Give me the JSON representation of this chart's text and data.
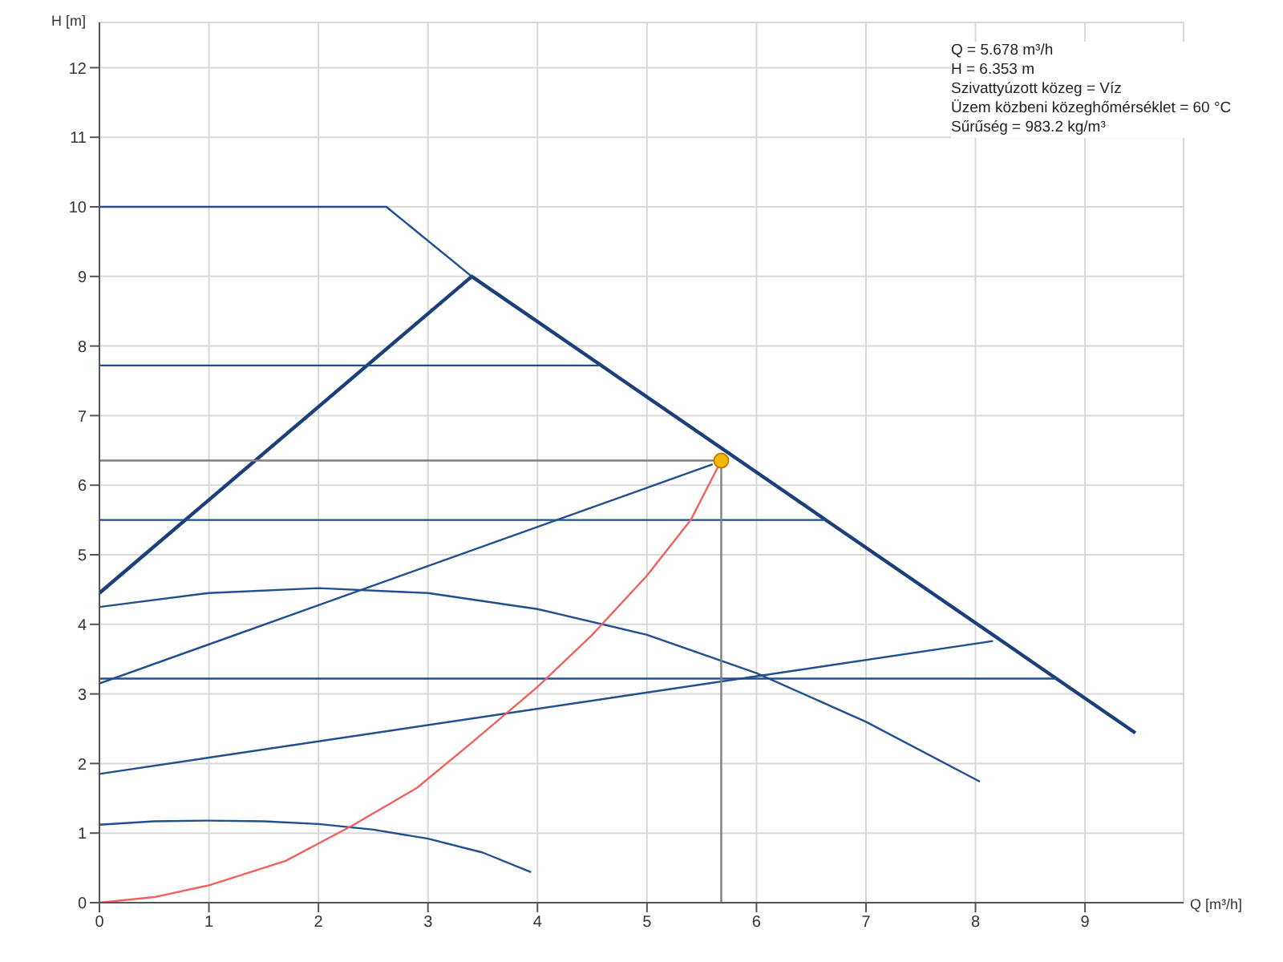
{
  "chart_data": {
    "type": "line",
    "xlabel": "Q [m³/h]",
    "ylabel": "H [m]",
    "annotations": [
      "Q = 5.678 m³/h",
      "H = 6.353 m",
      "Szivattyúzott közeg = Víz",
      "Üzem közbeni közeghőmérséklet = 60 °C",
      "Sűrűség = 983.2 kg/m³"
    ],
    "xlim": [
      0,
      9.9
    ],
    "ylim": [
      0,
      12.65
    ],
    "xticks": [
      0,
      1,
      2,
      3,
      4,
      5,
      6,
      7,
      8,
      9
    ],
    "yticks": [
      0,
      1,
      2,
      3,
      4,
      5,
      6,
      7,
      8,
      9,
      10,
      11,
      12
    ],
    "grid": true,
    "marker": "none",
    "line_style": "solid",
    "series": [
      {
        "color": "#1f4f8f",
        "x": [
          0,
          2.62,
          3.4
        ],
        "values": [
          10,
          10,
          9.0
        ]
      },
      {
        "color": "#1a3f7a",
        "x": [
          0,
          3.4,
          9.46
        ],
        "values": [
          4.45,
          9.0,
          2.44
        ]
      },
      {
        "color": "#1f4f8f",
        "x": [
          0,
          4.58
        ],
        "values": [
          7.72,
          7.72
        ]
      },
      {
        "color": "#1f4f8f",
        "x": [
          0,
          6.63
        ],
        "values": [
          5.5,
          5.5
        ]
      },
      {
        "color": "#1f4f8f",
        "x": [
          0,
          8.74
        ],
        "values": [
          3.22,
          3.22
        ]
      },
      {
        "color": "#1f4f8f",
        "x": [
          0,
          5.6
        ],
        "values": [
          3.15,
          6.3
        ]
      },
      {
        "color": "#1f4f8f",
        "x": [
          0,
          8.16
        ],
        "values": [
          1.85,
          3.76
        ]
      },
      {
        "color": "#1f4f8f",
        "x": [
          0,
          1,
          2,
          3,
          4,
          5,
          6,
          7,
          8.04
        ],
        "values": [
          4.25,
          4.45,
          4.52,
          4.45,
          4.22,
          3.85,
          3.3,
          2.6,
          1.74
        ]
      },
      {
        "color": "#1f4f8f",
        "x": [
          0,
          0.5,
          1,
          1.5,
          2,
          2.5,
          3,
          3.5,
          3.94
        ],
        "values": [
          1.12,
          1.17,
          1.18,
          1.17,
          1.13,
          1.05,
          0.92,
          0.72,
          0.44
        ]
      },
      {
        "color": "#f06060",
        "x": [
          0,
          0.5,
          1,
          1.7,
          2.3,
          2.9,
          3.4,
          4,
          4.5,
          5,
          5.4,
          5.678
        ],
        "values": [
          0,
          0.08,
          0.25,
          0.6,
          1.1,
          1.65,
          2.3,
          3.1,
          3.85,
          4.7,
          5.5,
          6.353
        ]
      },
      {
        "color": "#808080",
        "x": [
          0,
          5.678,
          5.678
        ],
        "values": [
          6.353,
          6.353,
          0
        ]
      },
      {
        "type": "scatter",
        "marker": "circle",
        "color": "#f5b800",
        "x": [
          5.678
        ],
        "values": [
          6.353
        ]
      }
    ]
  }
}
